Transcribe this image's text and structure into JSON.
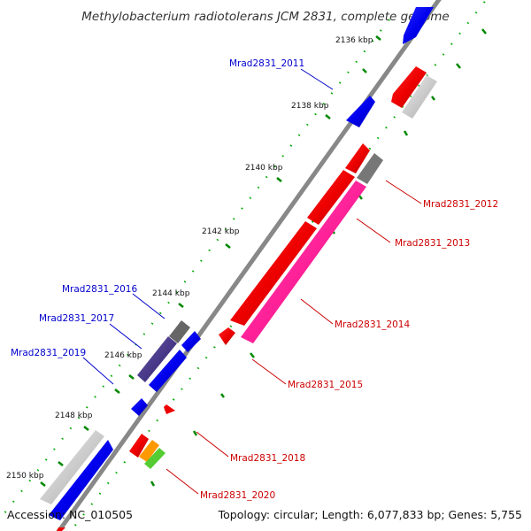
{
  "title": "Methylobacterium radiotolerans JCM 2831, complete genome",
  "ticks": [
    "2136 kbp",
    "2138 kbp",
    "2140 kbp",
    "2142 kbp",
    "2144 kbp",
    "2146 kbp",
    "2148 kbp",
    "2150 kbp"
  ],
  "genes": [
    {
      "label": "Mrad2831_2011",
      "color": "#0000cc",
      "strand": "forward"
    },
    {
      "label": "Mrad2831_2012",
      "color": "#cc0000",
      "strand": "reverse"
    },
    {
      "label": "Mrad2831_2013",
      "color": "#cc0000",
      "strand": "reverse"
    },
    {
      "label": "Mrad2831_2014",
      "color": "#cc0000",
      "strand": "reverse"
    },
    {
      "label": "Mrad2831_2015",
      "color": "#cc0000",
      "strand": "reverse"
    },
    {
      "label": "Mrad2831_2016",
      "color": "#0000cc",
      "strand": "forward"
    },
    {
      "label": "Mrad2831_2017",
      "color": "#0000cc",
      "strand": "forward"
    },
    {
      "label": "Mrad2831_2018",
      "color": "#cc0000",
      "strand": "reverse"
    },
    {
      "label": "Mrad2831_2019",
      "color": "#0000cc",
      "strand": "forward"
    },
    {
      "label": "Mrad2831_2020",
      "color": "#cc0000",
      "strand": "reverse"
    }
  ],
  "footer": {
    "accession": "Accession: NC_010505",
    "topology": "Topology: circular; Length: 6,077,833 bp; Genes: 5,755"
  },
  "colors": {
    "backbone": "#888888",
    "forward_cds": "#0000ee",
    "reverse_cds": "#ee0000",
    "rna": "#ff3399",
    "dark_feature": "#4a3a8a",
    "gray_feature": "#cccccc",
    "gc_dots": "#00aa00"
  }
}
